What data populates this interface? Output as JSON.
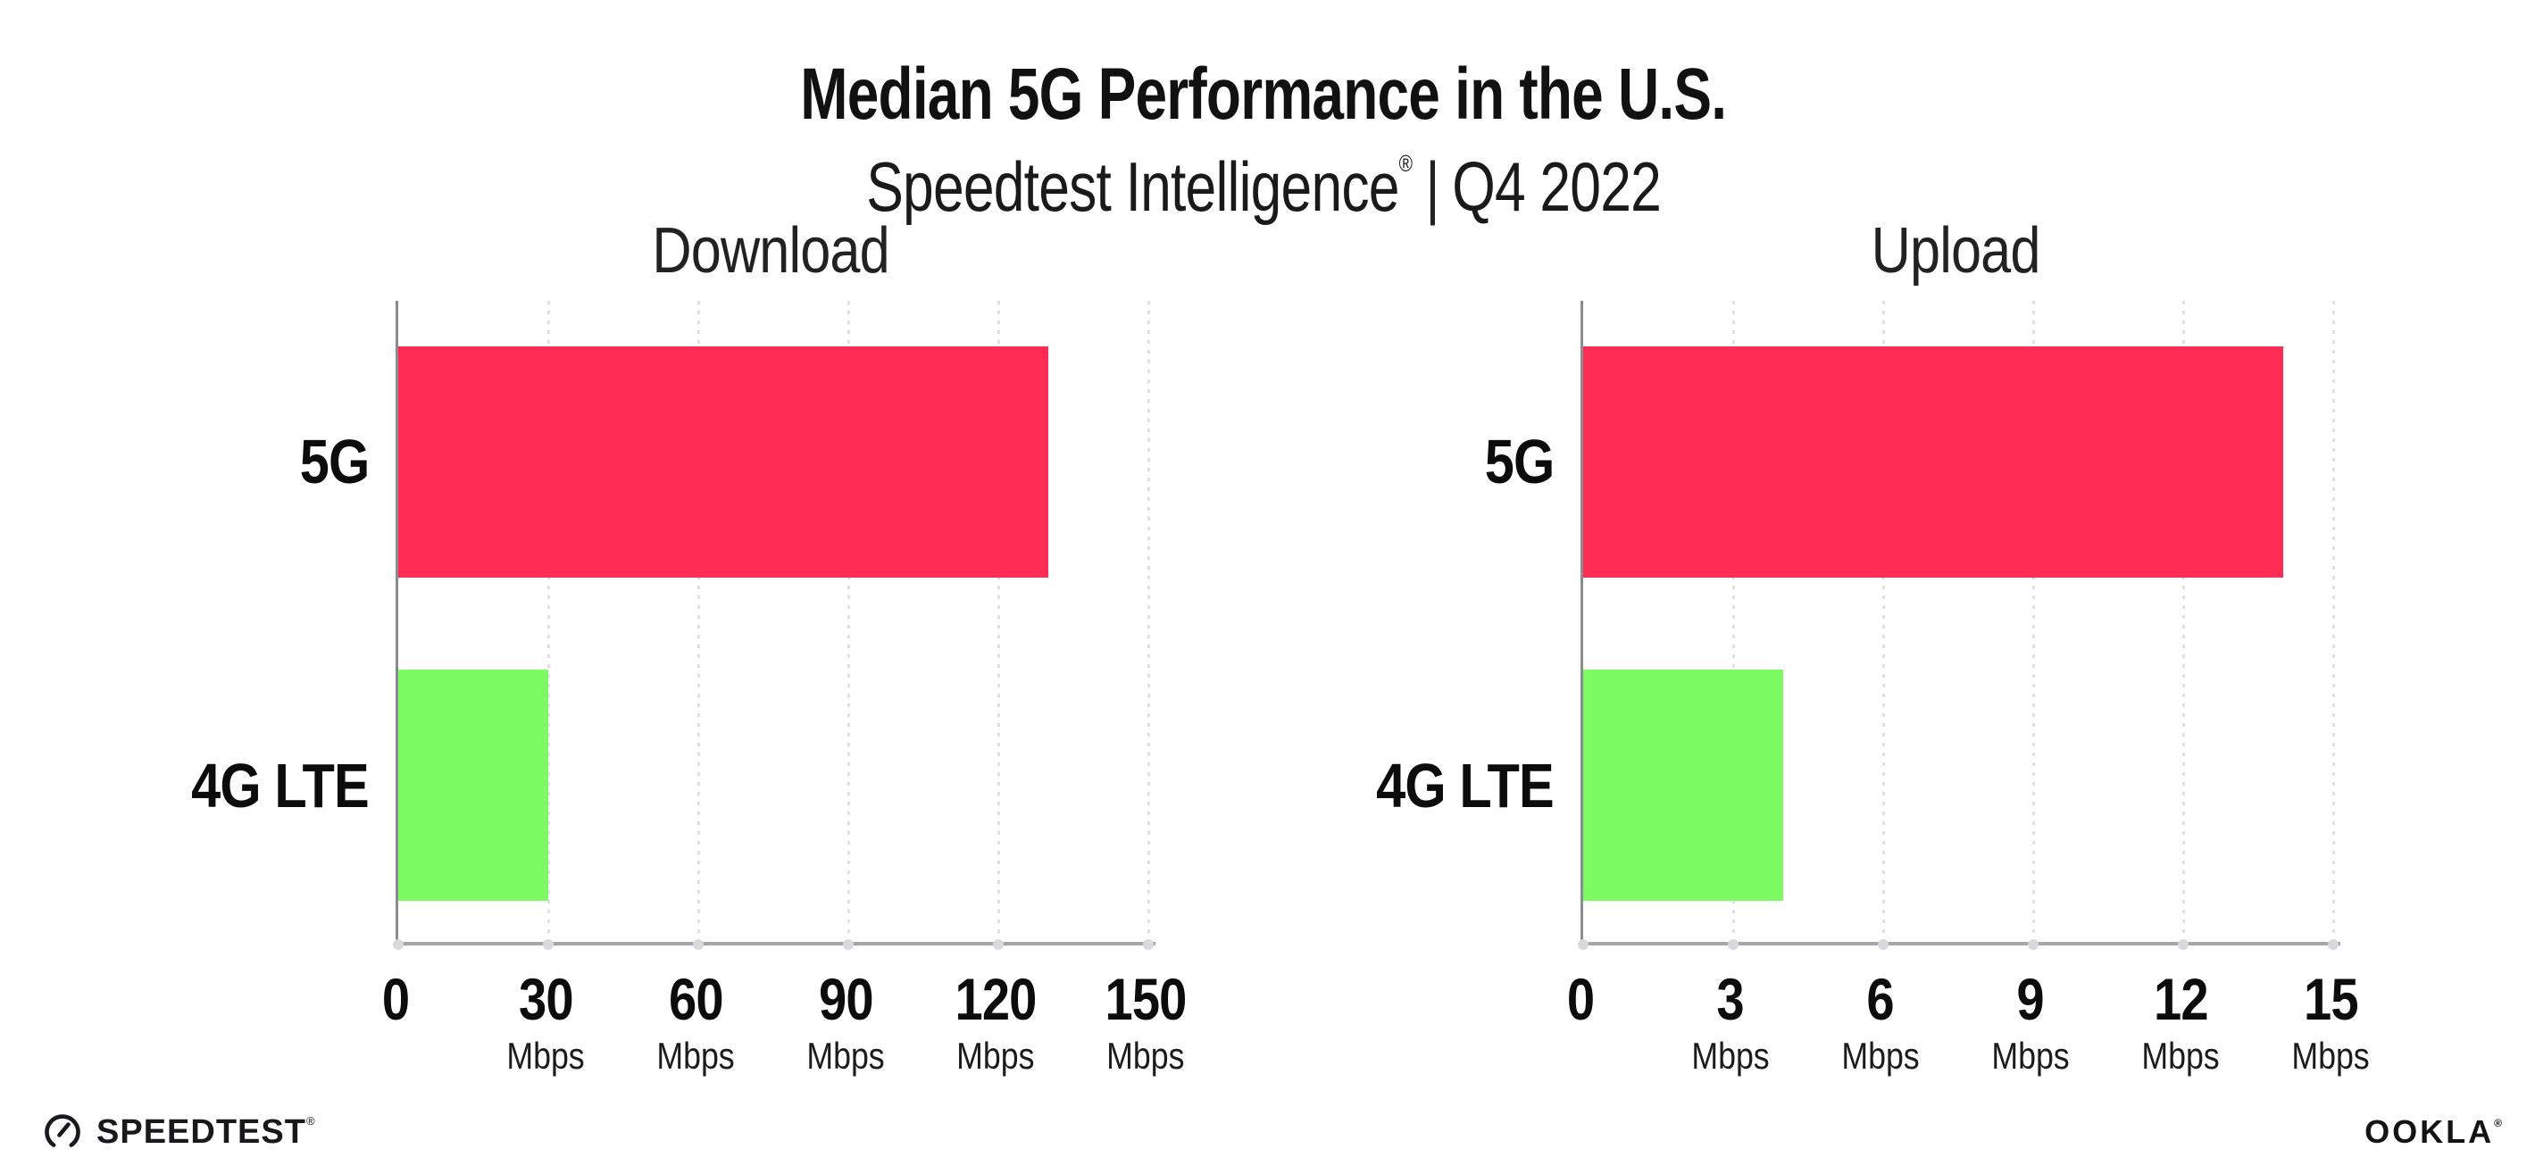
{
  "header": {
    "title": "Median 5G Performance in the U.S.",
    "subtitle_brand": "Speedtest Intelligence",
    "subtitle_reg": "®",
    "subtitle_divider": "|",
    "subtitle_period": "Q4 2022"
  },
  "chart_data": [
    {
      "type": "bar",
      "orientation": "horizontal",
      "title": "Download",
      "categories": [
        "5G",
        "4G LTE"
      ],
      "values": [
        130,
        30
      ],
      "unit": "Mbps",
      "xlim": [
        0,
        150
      ],
      "xticks": [
        0,
        30,
        60,
        90,
        120,
        150
      ],
      "bar_colors": [
        "#FF2D55",
        "#7CFB62"
      ],
      "grid": "vertical dotted gridlines at each tick",
      "legend": "none"
    },
    {
      "type": "bar",
      "orientation": "horizontal",
      "title": "Upload",
      "categories": [
        "5G",
        "4G LTE"
      ],
      "values": [
        14,
        4
      ],
      "unit": "Mbps",
      "xlim": [
        0,
        15
      ],
      "xticks": [
        0,
        3,
        6,
        9,
        12,
        15
      ],
      "bar_colors": [
        "#FF2D55",
        "#7CFB62"
      ],
      "grid": "vertical dotted gridlines at each tick",
      "legend": "none"
    }
  ],
  "footer": {
    "speedtest_icon": "gauge-icon",
    "speedtest_label": "SPEEDTEST",
    "speedtest_reg": "®",
    "ookla_label": "OOKLA",
    "ookla_reg": "®"
  },
  "colors": {
    "bar_5g": "#FF2D55",
    "bar_4g_lte": "#7CFB62",
    "gridline": "#DEE0E7",
    "axis_line": "#A5A5AA",
    "spine": "#8B8B90",
    "text": "#111111",
    "background": "#FFFFFF"
  }
}
